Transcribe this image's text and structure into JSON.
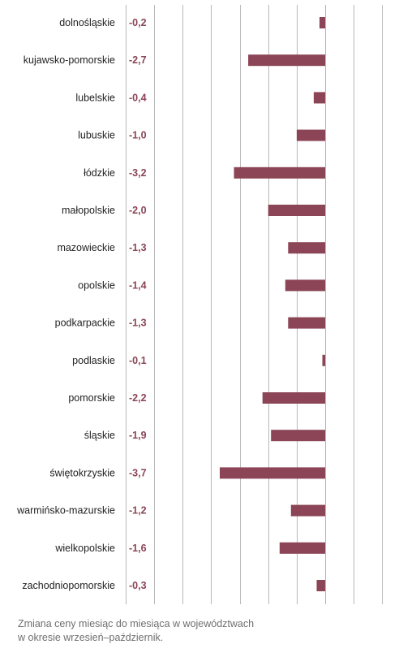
{
  "chart_data": {
    "type": "bar",
    "orientation": "horizontal",
    "categories": [
      "dolnośląskie",
      "kujawsko-pomorskie",
      "lubelskie",
      "lubuskie",
      "łódzkie",
      "małopolskie",
      "mazowieckie",
      "opolskie",
      "podkarpackie",
      "podlaskie",
      "pomorskie",
      "śląskie",
      "świętokrzyskie",
      "warmińsko-mazurskie",
      "wielkopolskie",
      "zachodniopomorskie"
    ],
    "values": [
      -0.2,
      -2.7,
      -0.4,
      -1.0,
      -3.2,
      -2.0,
      -1.3,
      -1.4,
      -1.3,
      -0.1,
      -2.2,
      -1.9,
      -3.7,
      -1.2,
      -1.6,
      -0.3
    ],
    "value_labels": [
      "-0,2",
      "-2,7",
      "-0,4",
      "-1,0",
      "-3,2",
      "-2,0",
      "-1,3",
      "-1,4",
      "-1,3",
      "-0,1",
      "-2,2",
      "-1,9",
      "-3,7",
      "-1,2",
      "-1,6",
      "-0,3"
    ],
    "xlim": [
      -7,
      2
    ],
    "grid": true,
    "bar_color": "#8b4556",
    "value_label_color": "#8b4556",
    "caption_lines": [
      "Zmiana ceny miesiąc do miesiąca w województwach",
      "w okresie wrzesień–październik."
    ]
  }
}
